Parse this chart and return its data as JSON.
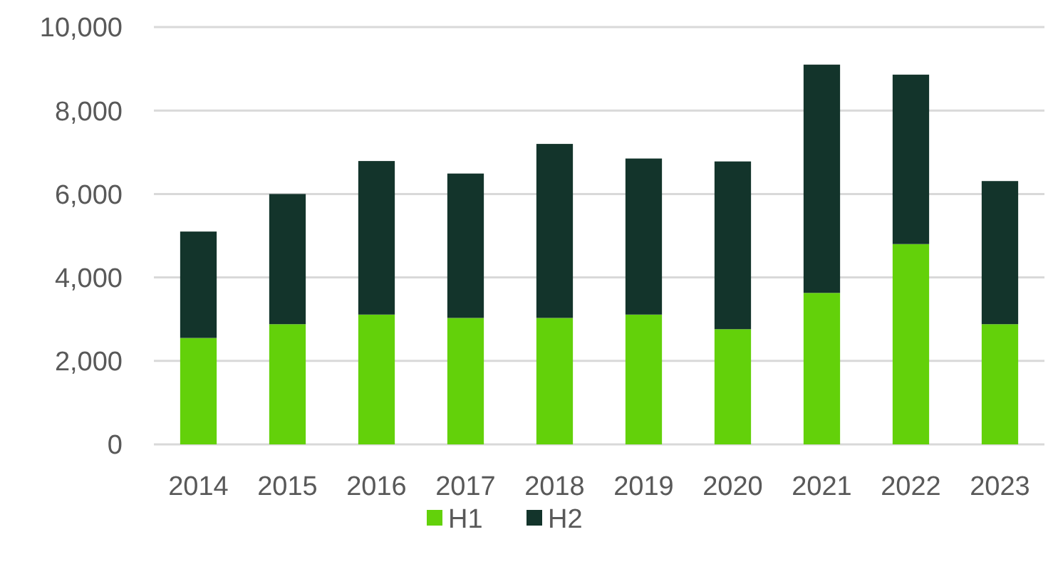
{
  "chart_data": {
    "type": "bar",
    "stacked": true,
    "categories": [
      "2014",
      "2015",
      "2016",
      "2017",
      "2018",
      "2019",
      "2020",
      "2021",
      "2022",
      "2023"
    ],
    "series": [
      {
        "name": "H1",
        "color": "#63d10a",
        "values": [
          2550,
          2880,
          3110,
          3030,
          3030,
          3110,
          2760,
          3630,
          4800,
          2880
        ]
      },
      {
        "name": "H2",
        "color": "#13342b",
        "values": [
          2550,
          3120,
          3680,
          3460,
          4170,
          3740,
          4020,
          5470,
          4060,
          3430
        ]
      }
    ],
    "ylim": [
      0,
      10000
    ],
    "yticks": [
      {
        "value": 0,
        "label": "0"
      },
      {
        "value": 2000,
        "label": "2,000"
      },
      {
        "value": 4000,
        "label": "4,000"
      },
      {
        "value": 6000,
        "label": "6,000"
      },
      {
        "value": 8000,
        "label": "8,000"
      },
      {
        "value": 10000,
        "label": "10,000"
      }
    ],
    "grid": "y",
    "legend": "bottom"
  }
}
